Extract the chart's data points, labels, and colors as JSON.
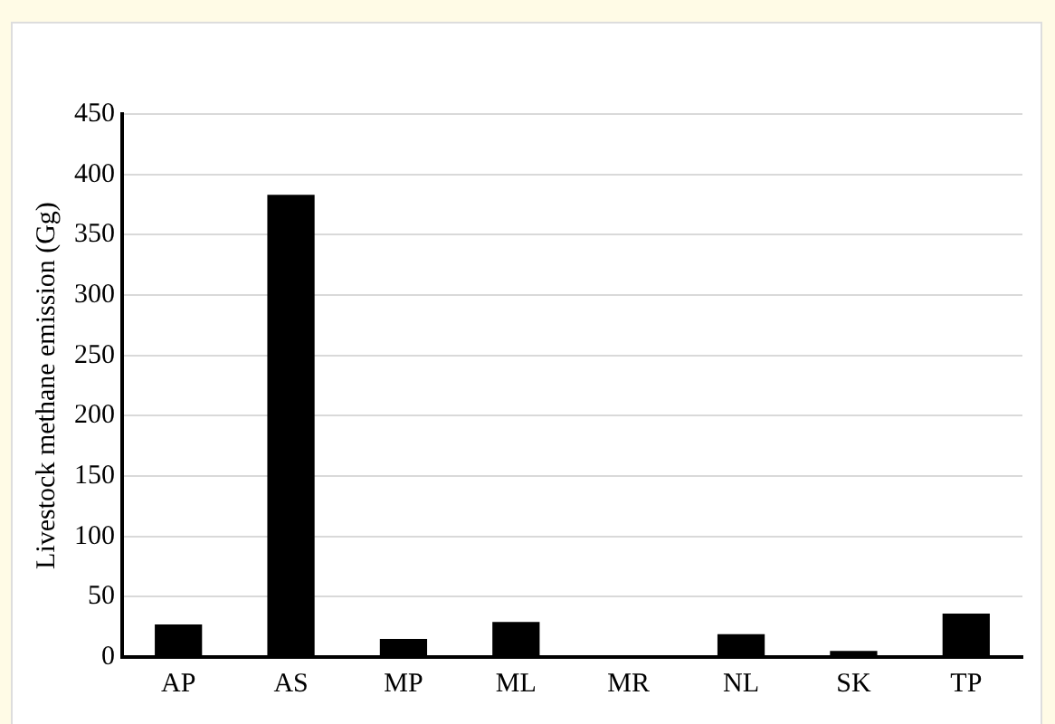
{
  "chart_data": {
    "type": "bar",
    "ylabel": "Livestock methane emission (Gg)",
    "categories": [
      "AP",
      "AS",
      "MP",
      "ML",
      "MR",
      "NL",
      "SK",
      "TP"
    ],
    "values": [
      27,
      383,
      15,
      29,
      0,
      19,
      5,
      36
    ],
    "color": "#000000",
    "ylim": [
      0,
      450
    ],
    "yticks": [
      0,
      50,
      100,
      150,
      200,
      250,
      300,
      350,
      400,
      450
    ],
    "grid": "y",
    "legend": false
  }
}
